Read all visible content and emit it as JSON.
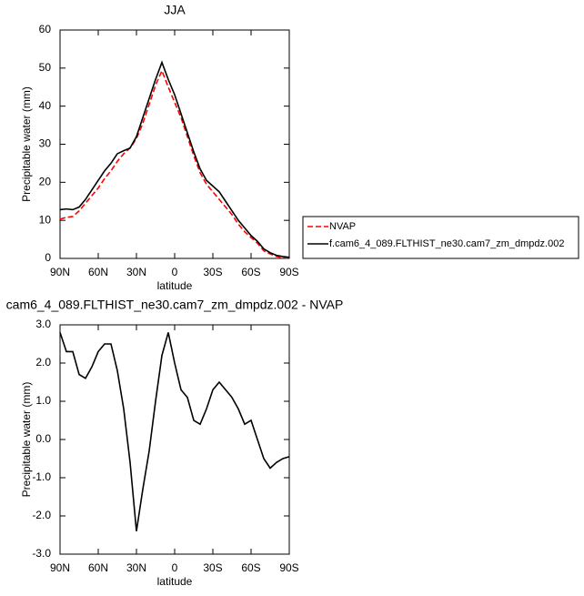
{
  "chart_data": [
    {
      "type": "line",
      "title": "JJA",
      "xlabel": "latitude",
      "ylabel": "Precipitable water (mm)",
      "x": [
        90,
        85,
        80,
        75,
        70,
        65,
        60,
        55,
        50,
        45,
        40,
        35,
        30,
        25,
        20,
        15,
        10,
        5,
        0,
        -5,
        -10,
        -15,
        -20,
        -25,
        -30,
        -35,
        -40,
        -45,
        -50,
        -55,
        -60,
        -65,
        -70,
        -75,
        -80,
        -85,
        -90
      ],
      "series": [
        {
          "name": "NVAP",
          "color": "#ff0000",
          "style": "dashed",
          "values": [
            10.3,
            10.8,
            11,
            12.5,
            14.5,
            16.5,
            18.5,
            21,
            23,
            25.5,
            27.5,
            29,
            31.5,
            35.5,
            40.5,
            45.5,
            49.3,
            45,
            41,
            37,
            32,
            27,
            22.5,
            19.5,
            17.5,
            15.5,
            13.5,
            11.5,
            9,
            7,
            5.5,
            4,
            2,
            1.2,
            0.5,
            0.2,
            0.1
          ]
        },
        {
          "name": "f.cam6_4_089.FLTHIST_ne30.cam7_zm_dmpdz.002",
          "color": "#000000",
          "style": "solid",
          "values": [
            12.8,
            13,
            12.8,
            13.5,
            15.5,
            18,
            20.5,
            23,
            25,
            27.5,
            28.3,
            29,
            32,
            37,
            42,
            47,
            51.5,
            47,
            43,
            38,
            33,
            28,
            23.5,
            20.5,
            19,
            17.5,
            15,
            12.5,
            10,
            8,
            6,
            4.5,
            2.5,
            1.5,
            0.8,
            0.5,
            0.3
          ]
        }
      ],
      "xlim": [
        90,
        -90
      ],
      "xticks": [
        {
          "value": 90,
          "label": "90N"
        },
        {
          "value": 60,
          "label": "60N"
        },
        {
          "value": 30,
          "label": "30N"
        },
        0,
        {
          "value": -30,
          "label": "30S"
        },
        {
          "value": -60,
          "label": "60S"
        },
        {
          "value": -90,
          "label": "90S"
        }
      ],
      "ylim": [
        0,
        60
      ],
      "yticks": [
        0,
        10,
        20,
        30,
        40,
        50,
        60
      ],
      "legend": "outside right"
    },
    {
      "type": "line",
      "title": "cam6_4_089.FLTHIST_ne30.cam7_zm_dmpdz.002 - NVAP",
      "xlabel": "latitude",
      "ylabel": "Precipitable water (mm)",
      "x": [
        90,
        85,
        80,
        75,
        70,
        65,
        60,
        55,
        50,
        45,
        40,
        35,
        30,
        25,
        20,
        15,
        10,
        5,
        0,
        -5,
        -10,
        -15,
        -20,
        -25,
        -30,
        -35,
        -40,
        -45,
        -50,
        -55,
        -60,
        -65,
        -70,
        -75,
        -80,
        -85,
        -90
      ],
      "series": [
        {
          "color": "#000000",
          "style": "solid",
          "values": [
            2.8,
            2.3,
            2.3,
            1.7,
            1.6,
            1.9,
            2.3,
            2.5,
            2.5,
            1.8,
            0.8,
            -0.6,
            -2.4,
            -1.3,
            -0.3,
            1.0,
            2.2,
            2.8,
            2.0,
            1.3,
            1.1,
            0.5,
            0.4,
            0.8,
            1.3,
            1.5,
            1.3,
            1.1,
            0.8,
            0.4,
            0.5,
            0.0,
            -0.5,
            -0.75,
            -0.6,
            -0.5,
            -0.45
          ]
        }
      ],
      "xlim": [
        90,
        -90
      ],
      "xticks": [
        {
          "value": 90,
          "label": "90N"
        },
        {
          "value": 60,
          "label": "60N"
        },
        {
          "value": 30,
          "label": "30N"
        },
        0,
        {
          "value": -30,
          "label": "30S"
        },
        {
          "value": -60,
          "label": "60S"
        },
        {
          "value": -90,
          "label": "90S"
        }
      ],
      "ylim": [
        -3,
        3
      ],
      "yticks": [
        {
          "value": -3,
          "label": "-3.0"
        },
        {
          "value": -2,
          "label": "-2.0"
        },
        {
          "value": -1,
          "label": "-1.0"
        },
        {
          "value": 0,
          "label": "0.0"
        },
        {
          "value": 1,
          "label": "1.0"
        },
        {
          "value": 2,
          "label": "2.0"
        },
        {
          "value": 3,
          "label": "3.0"
        }
      ]
    }
  ]
}
